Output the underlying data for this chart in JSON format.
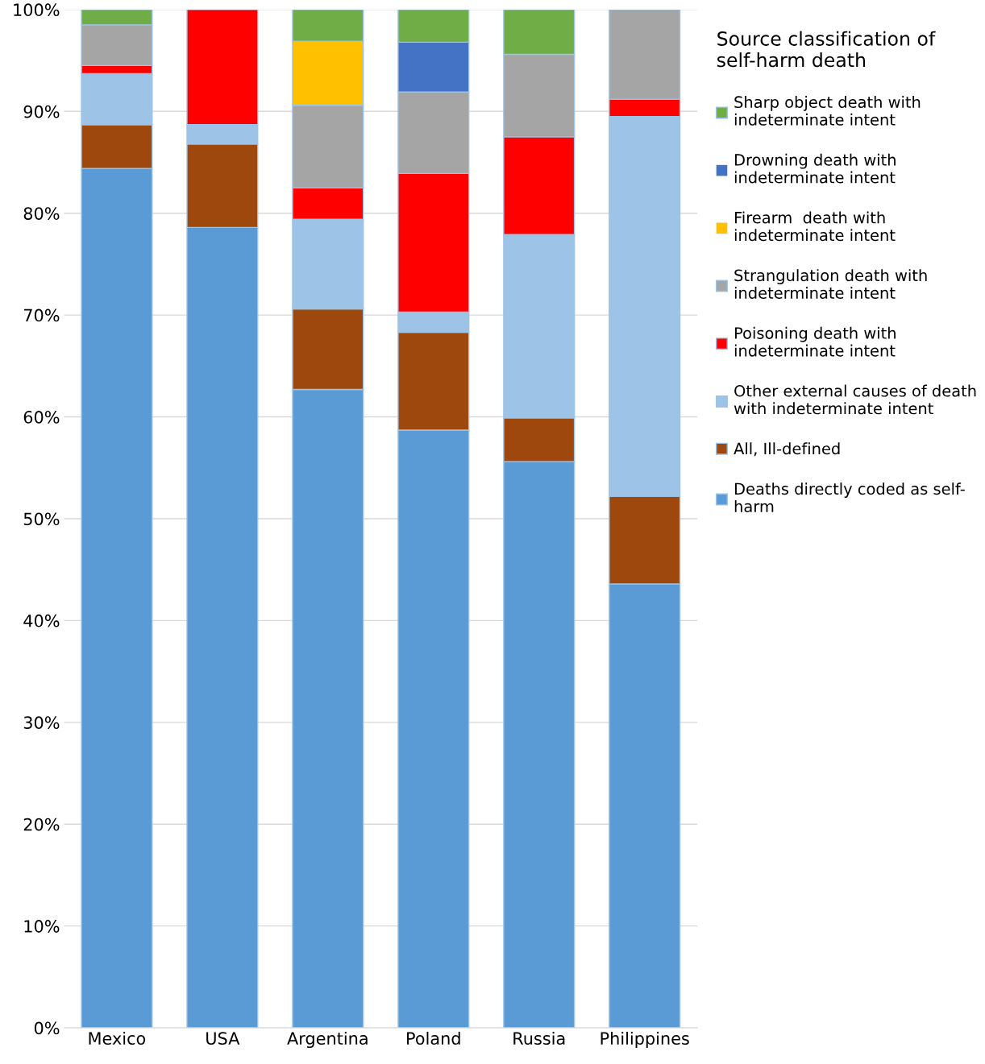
{
  "chart_data": {
    "type": "bar",
    "stacked": true,
    "categories": [
      "Mexico",
      "USA",
      "Argentina",
      "Poland",
      "Russia",
      "Philippines"
    ],
    "legend_title": "Source classification of\nself-harm death",
    "series": [
      {
        "name": "Deaths directly coded as self-\nharm",
        "color": "#5b9bd5",
        "values": [
          84.4,
          78.6,
          62.7,
          58.7,
          55.6,
          43.6
        ]
      },
      {
        "name": "All, Ill-defined",
        "color": "#9e480e",
        "values": [
          4.3,
          8.2,
          7.9,
          9.6,
          4.3,
          8.6
        ]
      },
      {
        "name": "Other external causes of death\nwith indeterminate intent",
        "color": "#9dc3e6",
        "values": [
          5.0,
          1.9,
          8.8,
          2.0,
          18.0,
          37.3
        ]
      },
      {
        "name": "Poisoning death with\nindeterminate intent",
        "color": "#ff0000",
        "values": [
          0.8,
          11.3,
          3.1,
          13.6,
          9.6,
          1.7
        ]
      },
      {
        "name": "Strangulation death with\nindeterminate intent",
        "color": "#a5a5a5",
        "values": [
          4.0,
          0,
          8.1,
          8.0,
          8.1,
          8.8
        ]
      },
      {
        "name": "Firearm  death with\nindeterminate intent",
        "color": "#ffc000",
        "values": [
          0,
          0,
          6.3,
          0,
          0,
          0
        ]
      },
      {
        "name": "Drowning death with\nindeterminate intent",
        "color": "#4472c4",
        "values": [
          0,
          0,
          0,
          4.9,
          0,
          0
        ]
      },
      {
        "name": "Sharp object death with\nindeterminate intent",
        "color": "#70ad47",
        "values": [
          1.5,
          0,
          3.1,
          3.2,
          4.4,
          0
        ]
      }
    ],
    "ylim": [
      0,
      100
    ],
    "yticks": [
      {
        "value": 0,
        "label": "0%"
      },
      {
        "value": 10,
        "label": "10%"
      },
      {
        "value": 20,
        "label": "20%"
      },
      {
        "value": 30,
        "label": "30%"
      },
      {
        "value": 40,
        "label": "40%"
      },
      {
        "value": 50,
        "label": "50%"
      },
      {
        "value": 60,
        "label": "60%"
      },
      {
        "value": 70,
        "label": "70%"
      },
      {
        "value": 80,
        "label": "80%"
      },
      {
        "value": 90,
        "label": "90%"
      },
      {
        "value": 100,
        "label": "100%"
      }
    ],
    "grid": "y",
    "legend": "right"
  }
}
